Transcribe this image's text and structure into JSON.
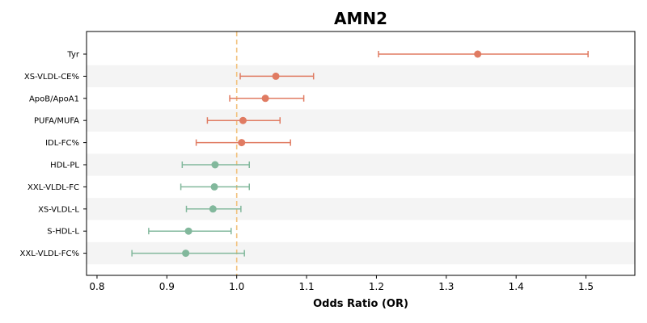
{
  "chart_data": {
    "type": "forest",
    "title": "AMN2",
    "xlabel": "Odds Ratio (OR)",
    "xlim": [
      0.785,
      1.57
    ],
    "xticks": [
      0.8,
      0.9,
      1.0,
      1.1,
      1.2,
      1.3,
      1.4,
      1.5
    ],
    "xtick_labels": [
      "0.8",
      "0.9",
      "1.0",
      "1.1",
      "1.2",
      "1.3",
      "1.4",
      "1.5"
    ],
    "reference_line": 1.0,
    "alternating_row_bands": true,
    "colors": {
      "risk": "#e07b62",
      "protective": "#82b89c",
      "reference": "#f2c27d",
      "band": "#f4f4f4"
    },
    "rows": [
      {
        "label": "Tyr",
        "or": 1.345,
        "lo": 1.203,
        "hi": 1.503,
        "group": "risk"
      },
      {
        "label": "XS-VLDL-CE%",
        "or": 1.056,
        "lo": 1.005,
        "hi": 1.11,
        "group": "risk"
      },
      {
        "label": "ApoB/ApoA1",
        "or": 1.041,
        "lo": 0.99,
        "hi": 1.096,
        "group": "risk"
      },
      {
        "label": "PUFA/MUFA",
        "or": 1.009,
        "lo": 0.958,
        "hi": 1.062,
        "group": "risk"
      },
      {
        "label": "IDL-FC%",
        "or": 1.007,
        "lo": 0.942,
        "hi": 1.077,
        "group": "risk"
      },
      {
        "label": "HDL-PL",
        "or": 0.969,
        "lo": 0.922,
        "hi": 1.018,
        "group": "protective"
      },
      {
        "label": "XXL-VLDL-FC",
        "or": 0.968,
        "lo": 0.92,
        "hi": 1.018,
        "group": "protective"
      },
      {
        "label": "XS-VLDL-L",
        "or": 0.966,
        "lo": 0.928,
        "hi": 1.006,
        "group": "protective"
      },
      {
        "label": "S-HDL-L",
        "or": 0.931,
        "lo": 0.874,
        "hi": 0.992,
        "group": "protective"
      },
      {
        "label": "XXL-VLDL-FC%",
        "or": 0.927,
        "lo": 0.85,
        "hi": 1.011,
        "group": "protective"
      }
    ]
  }
}
